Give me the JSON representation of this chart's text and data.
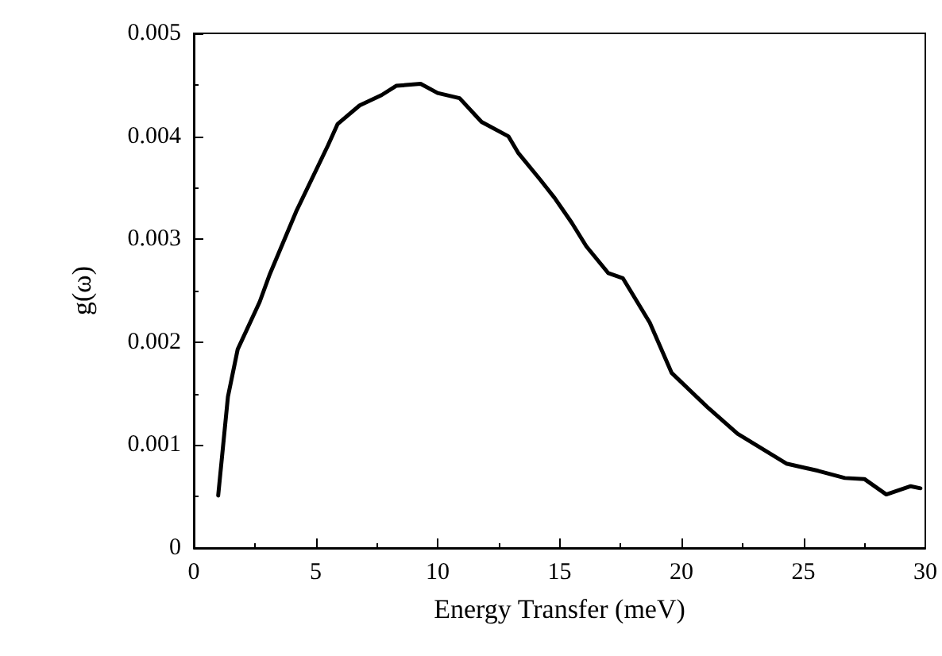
{
  "chart_data": {
    "type": "line",
    "xlabel": "Energy Transfer (meV)",
    "ylabel": "g(ω)",
    "xlim": [
      0,
      30
    ],
    "xticks": [
      0,
      5,
      10,
      15,
      20,
      25,
      30
    ],
    "ylim": [
      0,
      0.005
    ],
    "yticks": [
      0,
      0.001,
      0.002,
      0.003,
      0.004,
      0.005
    ],
    "grid": false,
    "marker": "none",
    "line_style": "solid",
    "series": [
      {
        "color": "#000000",
        "x": [
          1.0,
          1.4,
          1.8,
          2.7,
          3.1,
          4.2,
          5.5,
          5.9,
          6.8,
          7.7,
          8.3,
          9.3,
          10.0,
          10.9,
          11.8,
          12.9,
          13.3,
          14.2,
          14.8,
          15.5,
          16.1,
          17.0,
          17.6,
          18.7,
          19.6,
          21.1,
          22.3,
          24.3,
          25.6,
          26.7,
          27.5,
          28.4,
          29.4,
          29.8
        ],
        "values": [
          0.00051,
          0.00147,
          0.00193,
          0.00239,
          0.00265,
          0.00327,
          0.00391,
          0.00412,
          0.0043,
          0.0044,
          0.00449,
          0.00451,
          0.00442,
          0.00437,
          0.00414,
          0.004,
          0.00384,
          0.00358,
          0.0034,
          0.00316,
          0.00293,
          0.00267,
          0.00262,
          0.00219,
          0.0017,
          0.00136,
          0.00111,
          0.00082,
          0.00075,
          0.00068,
          0.00067,
          0.00052,
          0.0006,
          0.00058
        ]
      }
    ]
  }
}
